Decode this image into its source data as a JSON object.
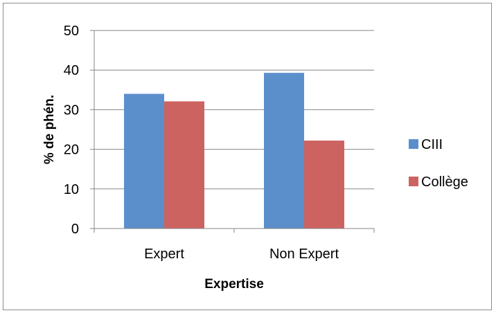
{
  "chart_data": {
    "type": "bar",
    "title": "",
    "xlabel": "Expertise",
    "ylabel": "% de phén.",
    "categories": [
      "Expert",
      "Non Expert"
    ],
    "series": [
      {
        "name": "CIII",
        "values": [
          34,
          39.3
        ],
        "color": "#5b8fcb"
      },
      {
        "name": "Collège",
        "values": [
          32.1,
          22.2
        ],
        "color": "#cd6360"
      }
    ],
    "ylim": [
      0,
      50
    ],
    "yticks": [
      0,
      10,
      20,
      30,
      40,
      50
    ],
    "grid": true,
    "legend_position": "right"
  }
}
